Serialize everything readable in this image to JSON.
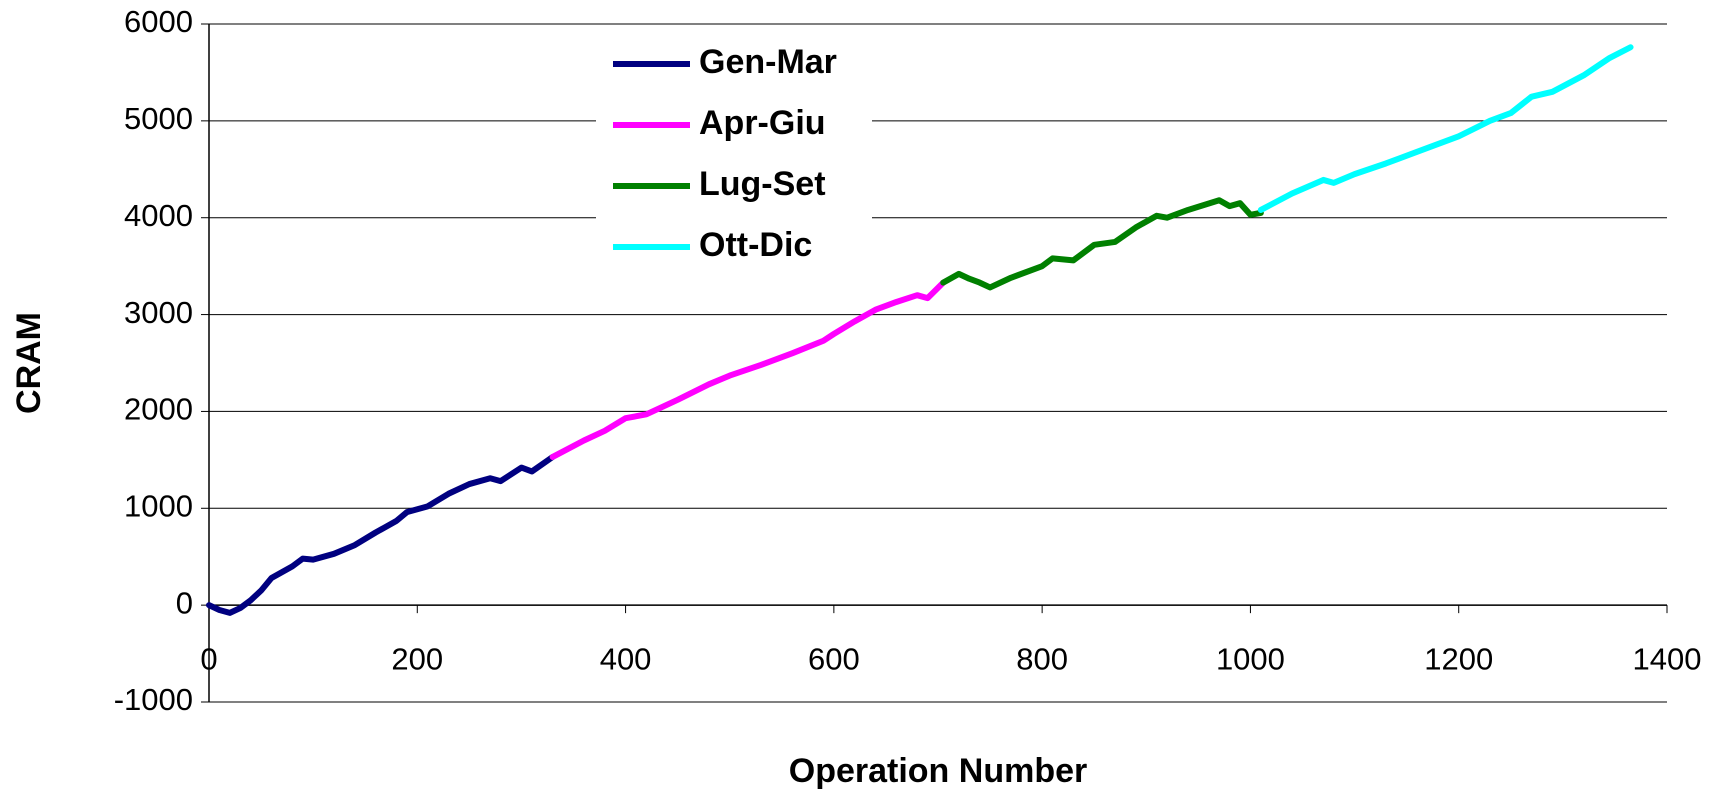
{
  "chart_data": {
    "type": "line",
    "x_label": "Operation Number",
    "y_label": "CRAM",
    "xlim": [
      0,
      1400
    ],
    "xticks": [
      0,
      200,
      400,
      600,
      800,
      1000,
      1200,
      1400
    ],
    "ylim": [
      -1000,
      6000
    ],
    "yticks": [
      -1000,
      0,
      1000,
      2000,
      3000,
      4000,
      5000,
      6000
    ],
    "grid": true,
    "legend": "upper left",
    "series": [
      {
        "name": "Gen-Mar",
        "color": "#000080",
        "x": [
          0,
          10,
          20,
          30,
          40,
          50,
          60,
          80,
          90,
          100,
          120,
          140,
          160,
          180,
          190,
          210,
          230,
          250,
          270,
          280,
          300,
          310,
          330
        ],
        "values": [
          0,
          -50,
          -80,
          -30,
          50,
          150,
          280,
          400,
          480,
          470,
          530,
          620,
          750,
          870,
          960,
          1020,
          1150,
          1250,
          1310,
          1280,
          1420,
          1380,
          1530
        ]
      },
      {
        "name": "Apr-Giu",
        "color": "#ff00ff",
        "x": [
          330,
          360,
          380,
          400,
          420,
          450,
          480,
          500,
          530,
          560,
          590,
          600,
          620,
          640,
          660,
          680,
          690,
          705
        ],
        "values": [
          1530,
          1700,
          1800,
          1930,
          1970,
          2120,
          2280,
          2370,
          2480,
          2600,
          2730,
          2800,
          2930,
          3050,
          3130,
          3200,
          3170,
          3330
        ]
      },
      {
        "name": "Lug-Set",
        "color": "#008000",
        "x": [
          705,
          720,
          730,
          740,
          750,
          770,
          800,
          810,
          830,
          850,
          870,
          890,
          910,
          920,
          940,
          970,
          980,
          990,
          1000,
          1010
        ],
        "values": [
          3330,
          3420,
          3370,
          3330,
          3280,
          3380,
          3500,
          3580,
          3560,
          3720,
          3750,
          3900,
          4020,
          4000,
          4080,
          4180,
          4120,
          4150,
          4030,
          4050
        ]
      },
      {
        "name": "Ott-Dic",
        "color": "#00ffff",
        "x": [
          1010,
          1040,
          1070,
          1080,
          1100,
          1130,
          1160,
          1200,
          1230,
          1250,
          1270,
          1290,
          1320,
          1345,
          1365
        ],
        "values": [
          4080,
          4250,
          4390,
          4360,
          4450,
          4560,
          4680,
          4840,
          5000,
          5080,
          5250,
          5300,
          5470,
          5650,
          5760
        ]
      }
    ]
  }
}
